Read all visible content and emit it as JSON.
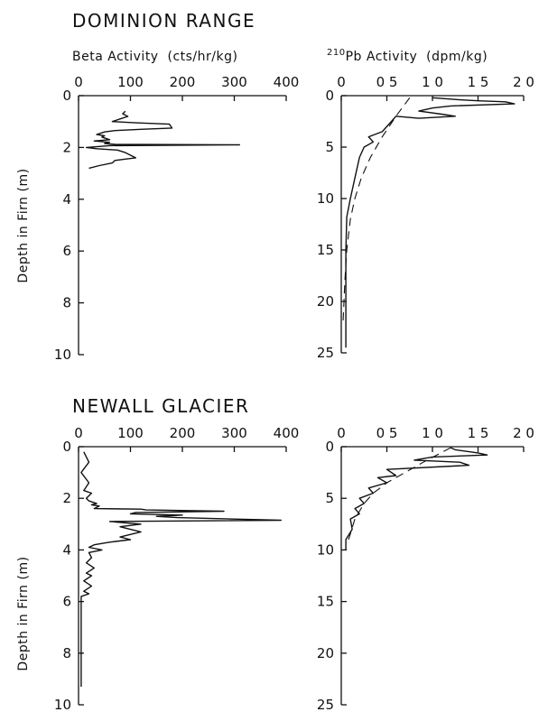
{
  "sections": [
    {
      "title": "DOMINION RANGE"
    },
    {
      "title": "NEWALL GLACIER"
    }
  ],
  "headers": {
    "beta": "Beta Activity  (cts/hr/kg)",
    "pb_sup": "210",
    "pb": "Pb Activity  (dpm/kg)"
  },
  "ylabel": "Depth in Firn (m)",
  "chart_data": [
    {
      "type": "line",
      "title": "DOMINION RANGE",
      "xlabel": "Beta Activity  (cts/hr/kg)",
      "ylabel": "Depth in Firn (m)",
      "xlim": [
        0,
        400
      ],
      "ylim": [
        10,
        0
      ],
      "x_ticks": [
        "0",
        "100",
        "200",
        "300",
        "400"
      ],
      "y_ticks": [
        "0",
        "2",
        "4",
        "6",
        "8",
        "10"
      ],
      "series": [
        {
          "x": [
            90,
            85,
            95,
            80,
            65,
            110,
            175,
            180,
            120,
            70,
            50,
            35,
            50,
            45,
            60,
            30,
            60,
            55,
            50,
            70,
            310,
            60,
            40,
            15,
            35,
            75,
            90,
            100,
            110,
            90,
            70,
            65,
            40,
            20
          ],
          "y": [
            0.6,
            0.7,
            0.8,
            0.9,
            1.0,
            1.05,
            1.1,
            1.25,
            1.3,
            1.35,
            1.4,
            1.5,
            1.55,
            1.6,
            1.7,
            1.75,
            1.8,
            1.82,
            1.85,
            1.88,
            1.9,
            1.93,
            1.96,
            2.0,
            2.05,
            2.1,
            2.2,
            2.3,
            2.4,
            2.45,
            2.5,
            2.6,
            2.7,
            2.8
          ]
        }
      ]
    },
    {
      "type": "line",
      "title": "DOMINION RANGE",
      "xlabel": "210Pb Activity  (dpm/kg)",
      "ylabel": "",
      "xlim": [
        0,
        2.0
      ],
      "ylim": [
        25,
        0
      ],
      "x_ticks": [
        "0",
        "0 5",
        "1 0",
        "1 5",
        "2 0"
      ],
      "y_ticks": [
        "0",
        "5",
        "10",
        "15",
        "20",
        "25"
      ],
      "series": [
        {
          "x": [
            1.0,
            1.3,
            1.5,
            1.8,
            1.9,
            1.2,
            1.0,
            0.85,
            1.1,
            1.25,
            0.85,
            0.6,
            0.55,
            0.45,
            0.3,
            0.35,
            0.25,
            0.2,
            0.15,
            0.1,
            0.06,
            0.05,
            0.05,
            0.05,
            0.05
          ],
          "y": [
            0.2,
            0.4,
            0.5,
            0.6,
            0.8,
            1.0,
            1.2,
            1.5,
            1.8,
            2.0,
            2.2,
            2.0,
            2.5,
            3.5,
            4.0,
            4.5,
            5.0,
            6.0,
            8.0,
            10.0,
            11.8,
            15.0,
            20.0,
            23.0,
            24.5
          ]
        },
        {
          "x": [
            0.75,
            0.6,
            0.45,
            0.32,
            0.22,
            0.15,
            0.1,
            0.06,
            0.04,
            0.02
          ],
          "y": [
            0.2,
            2.0,
            4.0,
            6.0,
            8.0,
            10.0,
            12.0,
            15.0,
            18.0,
            22.0
          ],
          "style": "dashed"
        }
      ]
    },
    {
      "type": "line",
      "title": "NEWALL GLACIER",
      "xlabel": "",
      "ylabel": "Depth in Firn (m)",
      "xlim": [
        0,
        400
      ],
      "ylim": [
        10,
        0
      ],
      "x_ticks": [
        "0",
        "100",
        "200",
        "300",
        "400"
      ],
      "y_ticks": [
        "0",
        "2",
        "4",
        "6",
        "8",
        "10"
      ],
      "series": [
        {
          "x": [
            10,
            20,
            5,
            20,
            10,
            25,
            15,
            20,
            35,
            25,
            40,
            30,
            120,
            130,
            280,
            110,
            100,
            200,
            150,
            190,
            390,
            60,
            120,
            80,
            120,
            80,
            100,
            60,
            30,
            20,
            45,
            20,
            25,
            15,
            30,
            15,
            25,
            10,
            25,
            10,
            20,
            5,
            5,
            5,
            5,
            5
          ],
          "y": [
            0.2,
            0.6,
            1.0,
            1.4,
            1.7,
            1.8,
            2.0,
            2.1,
            2.2,
            2.25,
            2.3,
            2.4,
            2.42,
            2.45,
            2.5,
            2.55,
            2.6,
            2.65,
            2.7,
            2.75,
            2.85,
            2.9,
            3.0,
            3.1,
            3.3,
            3.5,
            3.6,
            3.7,
            3.8,
            3.9,
            4.0,
            4.1,
            4.3,
            4.5,
            4.7,
            4.9,
            5.0,
            5.2,
            5.4,
            5.6,
            5.7,
            5.8,
            6.5,
            7.5,
            8.5,
            9.3
          ]
        }
      ]
    },
    {
      "type": "line",
      "title": "NEWALL GLACIER",
      "xlabel": "",
      "ylabel": "",
      "xlim": [
        0,
        2.0
      ],
      "ylim": [
        25,
        0
      ],
      "x_ticks": [
        "0",
        "0 5",
        "1 0",
        "1 5",
        "2 0"
      ],
      "y_ticks": [
        "0",
        "5",
        "10",
        "15",
        "20",
        "25"
      ],
      "series": [
        {
          "x": [
            1.2,
            1.25,
            1.5,
            1.6,
            1.0,
            0.8,
            1.3,
            1.4,
            0.5,
            0.6,
            0.4,
            0.5,
            0.3,
            0.35,
            0.2,
            0.25,
            0.15,
            0.2,
            0.1,
            0.12,
            0.05,
            0.05
          ],
          "y": [
            0.1,
            0.3,
            0.6,
            0.8,
            1.0,
            1.3,
            1.5,
            1.8,
            2.2,
            2.8,
            3.0,
            3.5,
            4.0,
            4.5,
            5.0,
            5.5,
            6.0,
            6.5,
            7.0,
            8.0,
            9.0,
            10.0
          ]
        },
        {
          "x": [
            1.2,
            0.9,
            0.7,
            0.5,
            0.35,
            0.25,
            0.15,
            0.08
          ],
          "y": [
            0.1,
            1.5,
            2.5,
            3.5,
            4.5,
            5.5,
            7.0,
            9.0
          ],
          "style": "dashed"
        }
      ]
    }
  ]
}
